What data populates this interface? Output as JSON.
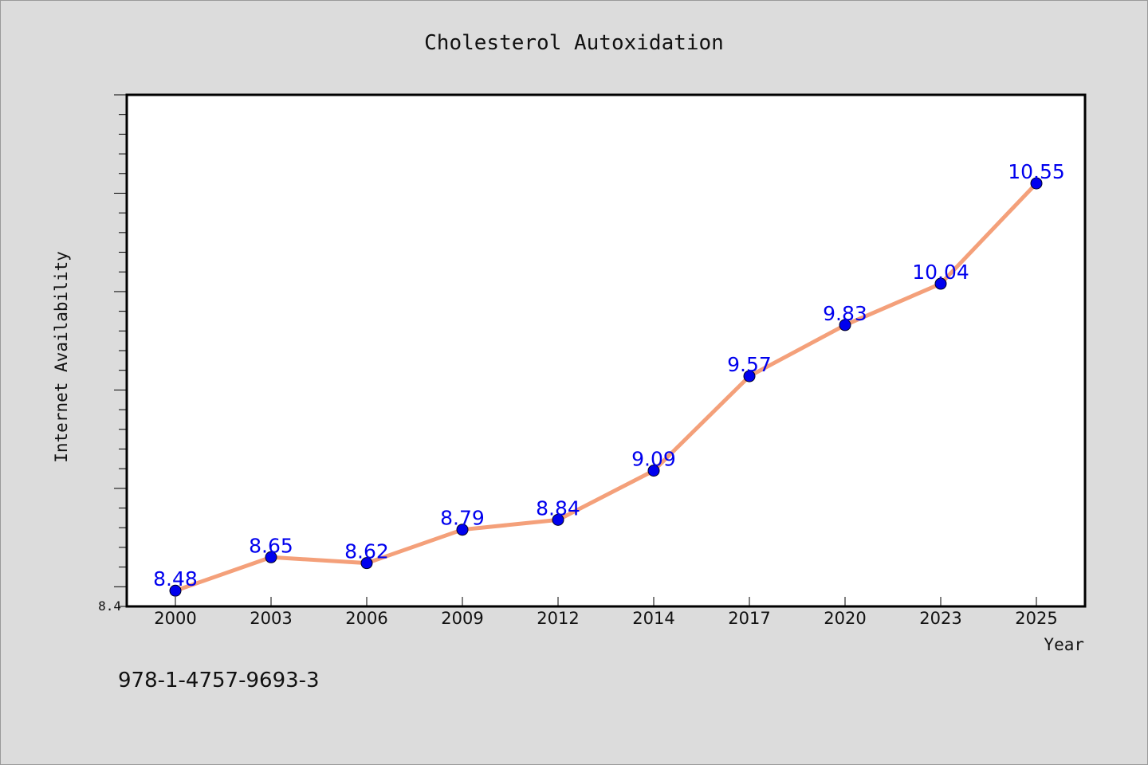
{
  "chart_data": {
    "type": "line",
    "title": "Cholesterol Autoxidation",
    "xlabel": "Year",
    "ylabel": "Internet Availability",
    "categories": [
      "2000",
      "2003",
      "2006",
      "2009",
      "2012",
      "2014",
      "2017",
      "2020",
      "2023",
      "2025"
    ],
    "series": [
      {
        "values": [
          8.48,
          8.65,
          8.62,
          8.79,
          8.84,
          9.09,
          9.57,
          9.83,
          10.04,
          10.55
        ]
      }
    ],
    "ylim": [
      8.4,
      11.0
    ],
    "y_tick_labels": [
      "8.4"
    ],
    "grid": false,
    "line_color": "#f4a07a",
    "marker_color": "#0000ee",
    "label_color": "#0000ee",
    "plot_background": "#ffffff",
    "figure_background": "#dcdcdc"
  },
  "footer_text": "978-1-4757-9693-3"
}
